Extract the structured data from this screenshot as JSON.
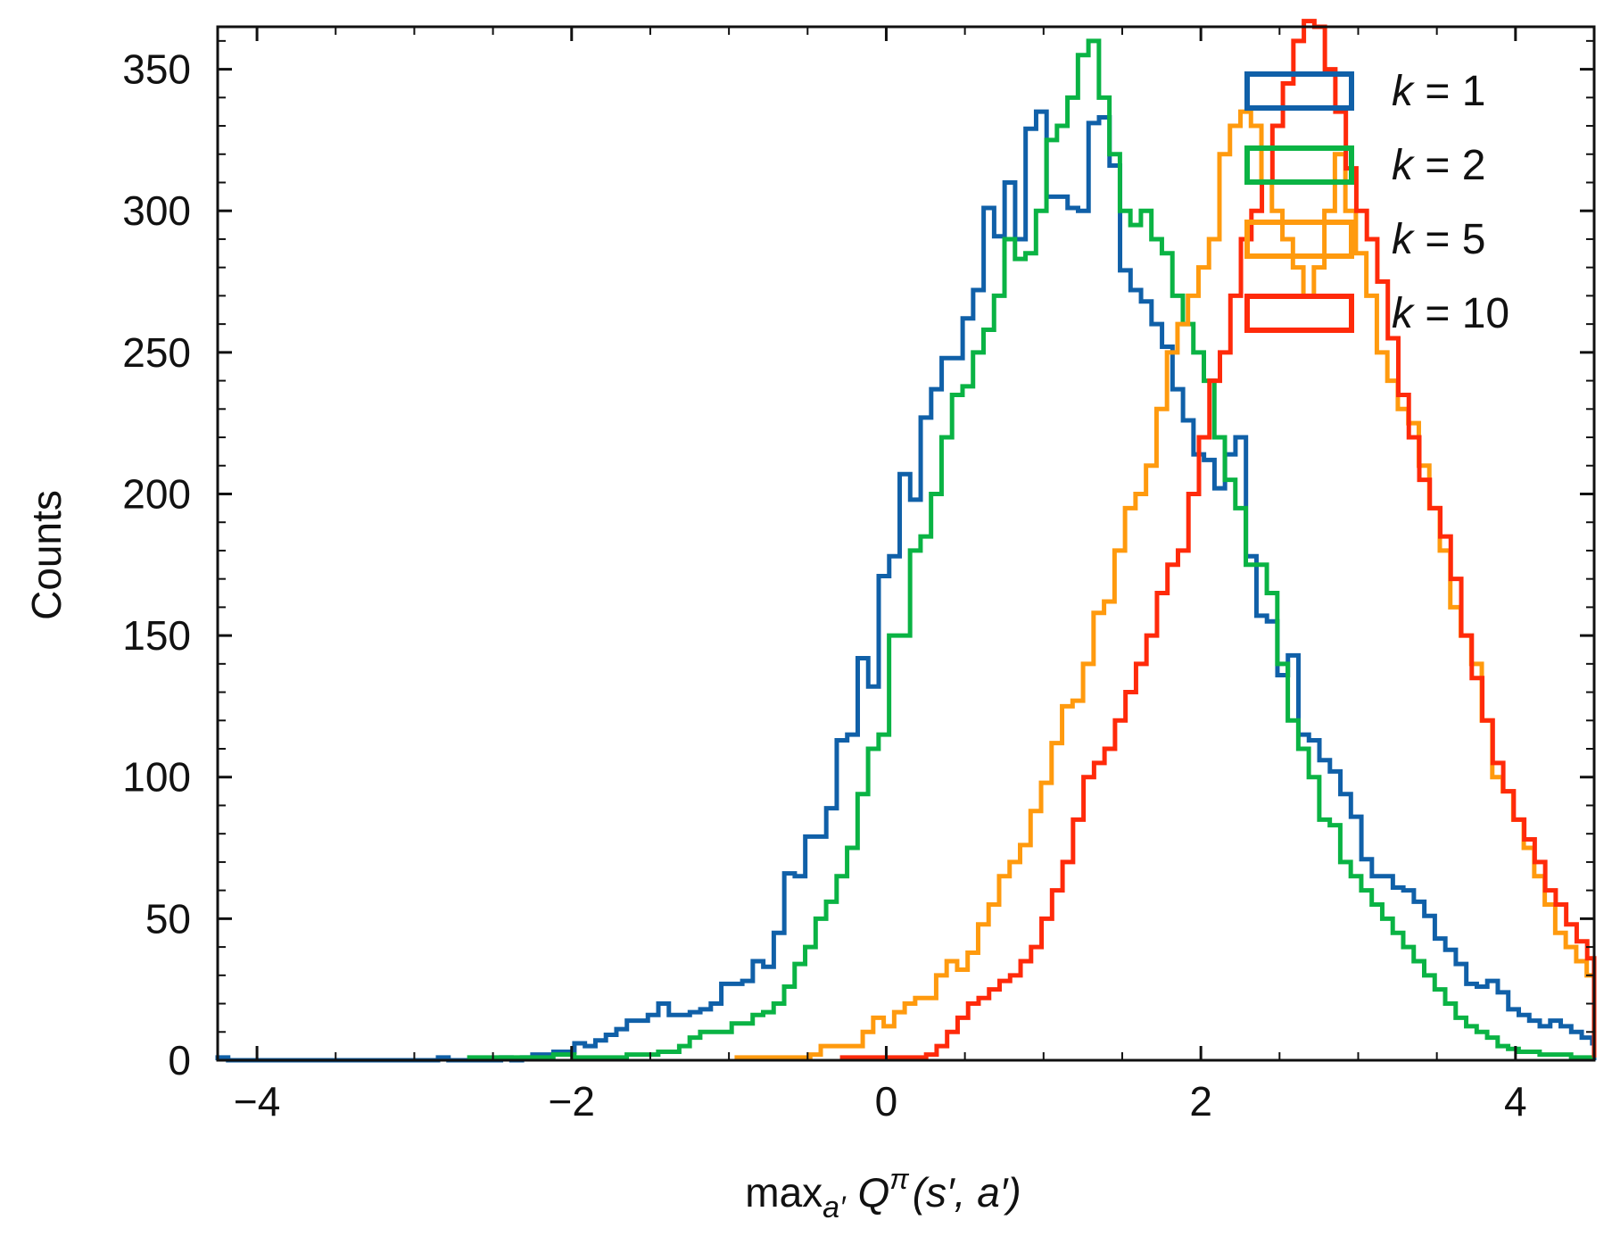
{
  "chart_data": {
    "type": "histogram",
    "xlabel": "max_{a'} Q^π(s', a')",
    "xlabel_parts": {
      "base": "max",
      "sub": "a′",
      "q": "Q",
      "sup": "π",
      "args": "(s′, a′)"
    },
    "ylabel": "Counts",
    "xlim": [
      -4.25,
      4.5
    ],
    "ylim": [
      0,
      365
    ],
    "x_ticks": [
      -4,
      -2,
      0,
      2,
      4
    ],
    "x_tick_labels": [
      "−4",
      "−2",
      "0",
      "2",
      "4"
    ],
    "y_ticks": [
      0,
      50,
      100,
      150,
      200,
      250,
      300,
      350
    ],
    "y_tick_labels": [
      "0",
      "50",
      "100",
      "150",
      "200",
      "250",
      "300",
      "350"
    ],
    "legend_position": "top-right",
    "series": [
      {
        "name": "k = 1",
        "k_label": "k",
        "k_value": "1",
        "color": "#1060a8",
        "bin_start": -4.25,
        "bin_width": 0.0667,
        "counts": [
          1,
          0,
          0,
          0,
          0,
          0,
          0,
          0,
          0,
          0,
          0,
          0,
          0,
          0,
          0,
          0,
          0,
          0,
          0,
          0,
          0,
          1,
          0,
          0,
          0,
          0,
          0,
          1,
          0,
          1,
          2,
          2,
          3,
          3,
          6,
          5,
          7,
          9,
          11,
          14,
          14,
          16,
          20,
          16,
          16,
          17,
          18,
          20,
          27,
          27,
          28,
          35,
          33,
          45,
          66,
          65,
          79,
          79,
          89,
          113,
          115,
          142,
          132,
          171,
          178,
          207,
          198,
          227,
          237,
          248,
          248,
          262,
          272,
          301,
          291,
          310,
          290,
          329,
          335,
          305,
          305,
          301,
          300,
          331,
          333,
          316,
          279,
          272,
          268,
          260,
          252,
          237,
          226,
          214,
          212,
          202,
          214,
          220,
          178,
          157,
          155,
          136,
          143,
          115,
          113,
          106,
          102,
          94,
          86,
          71,
          65,
          65,
          61,
          60,
          56,
          51,
          43,
          39,
          34,
          27,
          26,
          28,
          24,
          18,
          16,
          14,
          12,
          14,
          12,
          10,
          8,
          6,
          3,
          2,
          1,
          1,
          1,
          1,
          1,
          0,
          0,
          0,
          0,
          0,
          0,
          0,
          0,
          0,
          0,
          0,
          0,
          0,
          0,
          0,
          0,
          0,
          0,
          0,
          0,
          0,
          0,
          0,
          0,
          0,
          0,
          0
        ]
      },
      {
        "name": "k = 2",
        "k_label": "k",
        "k_value": "2",
        "color": "#0ab344",
        "bin_start": -2.65,
        "bin_width": 0.0667,
        "counts": [
          1,
          1,
          1,
          1,
          1,
          1,
          1,
          1,
          2,
          2,
          1,
          1,
          1,
          1,
          1,
          2,
          2,
          2,
          3,
          3,
          5,
          8,
          10,
          10,
          10,
          13,
          13,
          16,
          17,
          20,
          26,
          34,
          40,
          50,
          56,
          65,
          75,
          94,
          110,
          115,
          150,
          150,
          180,
          185,
          200,
          220,
          235,
          238,
          250,
          258,
          270,
          290,
          283,
          285,
          300,
          325,
          330,
          340,
          355,
          360,
          340,
          320,
          300,
          295,
          300,
          290,
          285,
          270,
          260,
          250,
          240,
          220,
          205,
          195,
          175,
          175,
          165,
          140,
          120,
          110,
          100,
          85,
          83,
          70,
          65,
          60,
          55,
          50,
          45,
          40,
          35,
          30,
          25,
          20,
          15,
          12,
          10,
          8,
          5,
          4,
          3,
          3,
          2,
          2,
          2,
          1,
          1,
          1,
          1,
          1,
          1,
          1,
          1,
          1,
          1,
          1,
          1,
          1,
          1,
          1,
          1,
          1,
          1,
          1,
          1,
          1,
          1,
          1,
          1,
          1,
          1,
          1,
          1,
          1
        ]
      },
      {
        "name": "k = 5",
        "k_label": "k",
        "k_value": "5",
        "color": "#ff9a0e",
        "bin_start": -0.95,
        "bin_width": 0.0667,
        "counts": [
          1,
          1,
          1,
          1,
          1,
          1,
          1,
          2,
          5,
          5,
          5,
          5,
          10,
          15,
          12,
          17,
          20,
          22,
          22,
          30,
          35,
          32,
          38,
          48,
          55,
          65,
          70,
          76,
          88,
          98,
          112,
          125,
          127,
          140,
          158,
          162,
          180,
          195,
          200,
          210,
          230,
          250,
          260,
          270,
          280,
          290,
          320,
          330,
          335,
          330,
          310,
          300,
          290,
          280,
          270,
          280,
          300,
          320,
          300,
          285,
          270,
          250,
          240,
          230,
          225,
          210,
          195,
          180,
          160,
          150,
          140,
          120,
          100,
          95,
          85,
          75,
          65,
          55,
          45,
          40,
          35,
          30,
          25,
          20,
          18,
          15,
          12,
          10,
          8,
          6,
          5,
          4,
          3,
          2,
          2,
          1,
          1,
          1,
          1,
          1,
          1,
          1,
          1,
          1,
          1,
          1,
          1,
          1,
          1,
          1,
          1,
          1,
          1,
          1,
          1,
          1,
          1
        ]
      },
      {
        "name": "k = 10",
        "k_label": "k",
        "k_value": "10",
        "color": "#ff2a0a",
        "bin_start": -0.28,
        "bin_width": 0.0667,
        "counts": [
          1,
          1,
          1,
          1,
          1,
          1,
          1,
          1,
          2,
          5,
          10,
          15,
          20,
          22,
          25,
          28,
          30,
          35,
          40,
          50,
          60,
          70,
          85,
          100,
          105,
          110,
          120,
          130,
          140,
          150,
          165,
          175,
          180,
          200,
          220,
          240,
          250,
          270,
          290,
          300,
          310,
          330,
          345,
          360,
          370,
          365,
          350,
          335,
          315,
          300,
          290,
          275,
          255,
          235,
          220,
          205,
          195,
          185,
          170,
          150,
          135,
          120,
          105,
          95,
          85,
          78,
          70,
          60,
          55,
          48,
          42,
          36,
          30,
          25,
          20,
          16,
          12,
          10,
          8,
          6,
          5,
          4,
          3,
          3,
          2,
          2,
          2,
          2,
          1,
          1,
          1,
          1,
          1,
          1,
          1,
          1,
          1,
          1,
          1,
          1,
          1,
          1,
          1,
          1,
          1,
          1,
          1,
          1,
          1,
          1,
          1,
          1,
          1,
          1,
          1,
          1,
          1,
          1,
          1,
          1,
          1,
          1,
          1,
          1,
          1,
          1,
          1,
          1
        ]
      }
    ]
  }
}
